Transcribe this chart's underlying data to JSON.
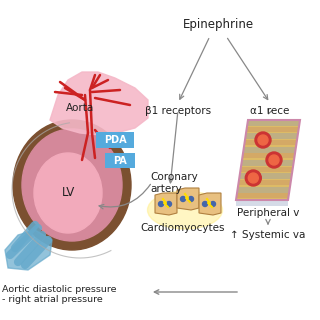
{
  "epinephrine_label": "Epinephrine",
  "b1_label": "β1 receptors",
  "a1_label": "α1 rece",
  "cardiomyocytes_label": "Cardiomyocytes",
  "peripheral_label": "Peripheral v",
  "coronary_label": "Coronary\nartery",
  "aorta_label": "Aorta",
  "pda_label": "PDA",
  "pa_label": "PA",
  "lv_label": "LV",
  "bottom_left1": "Aortic diastolic pressure",
  "bottom_left2": "- right atrial pressure",
  "systemic_label": "↑ Systemic va",
  "bg_color": "#ffffff",
  "heart_outer_color": "#7B5030",
  "heart_inner_color": "#D4889A",
  "lv_color": "#F2AABB",
  "aorta_color": "#F5B8C8",
  "aorta_vessel_color": "#CC2222",
  "blue_vessel_color": "#66AACC",
  "pda_box_color": "#55AADD",
  "coronary_fill": "#E8C080",
  "coronary_glow": "#FFEE88",
  "peripheral_fill": "#DDBB66",
  "peripheral_stripe_blue": "#8899BB",
  "peripheral_stripe_tan": "#CC9966",
  "peripheral_red": "#CC3333",
  "arrow_color": "#888888",
  "text_color": "#222222",
  "label_fontsize": 7.5,
  "small_fontsize": 6.8
}
